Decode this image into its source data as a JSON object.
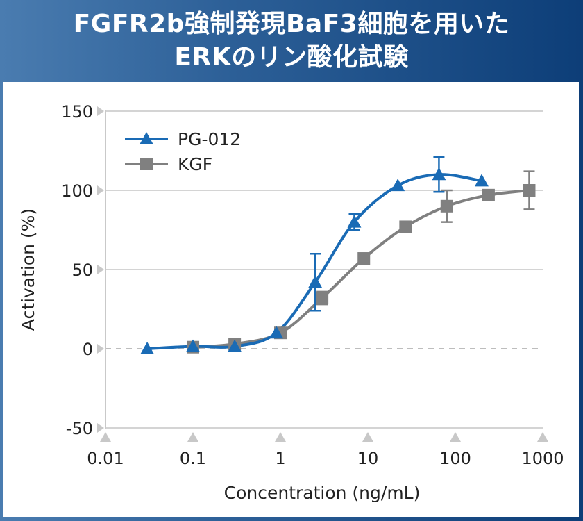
{
  "title": {
    "line1": "FGFR2b強制発現BaF3細胞を用いた",
    "line2": "ERKのリン酸化試験"
  },
  "chart_data": {
    "type": "line",
    "xscale": "log",
    "xlabel": "Concentration (ng/mL)",
    "ylabel": "Activation (%)",
    "xlim": [
      0.01,
      1000
    ],
    "ylim": [
      -50,
      150
    ],
    "x_ticks": [
      "0.01",
      "0.1",
      "1",
      "10",
      "100",
      "1000"
    ],
    "y_ticks": [
      "150",
      "100",
      "50",
      "0",
      "-50"
    ],
    "grid": "horizontal",
    "legend": "top-left",
    "series": [
      {
        "name": "PG-012",
        "color": "#1a6bb5",
        "marker": "triangle",
        "x": [
          0.03,
          0.1,
          0.3,
          0.9,
          2.5,
          7,
          22,
          65,
          200
        ],
        "y": [
          0,
          1.5,
          1.5,
          10,
          42,
          80,
          103,
          110,
          106
        ],
        "err": [
          0,
          0,
          0,
          0,
          18,
          5,
          0,
          11,
          0
        ]
      },
      {
        "name": "KGF",
        "color": "#808080",
        "marker": "square",
        "x": [
          0.1,
          0.3,
          1,
          3,
          9,
          27,
          80,
          240,
          700
        ],
        "y": [
          1,
          3,
          10,
          32,
          57,
          77,
          90,
          97,
          100
        ],
        "err": [
          0,
          0,
          0,
          4,
          0,
          0,
          10,
          0,
          12
        ]
      }
    ]
  }
}
